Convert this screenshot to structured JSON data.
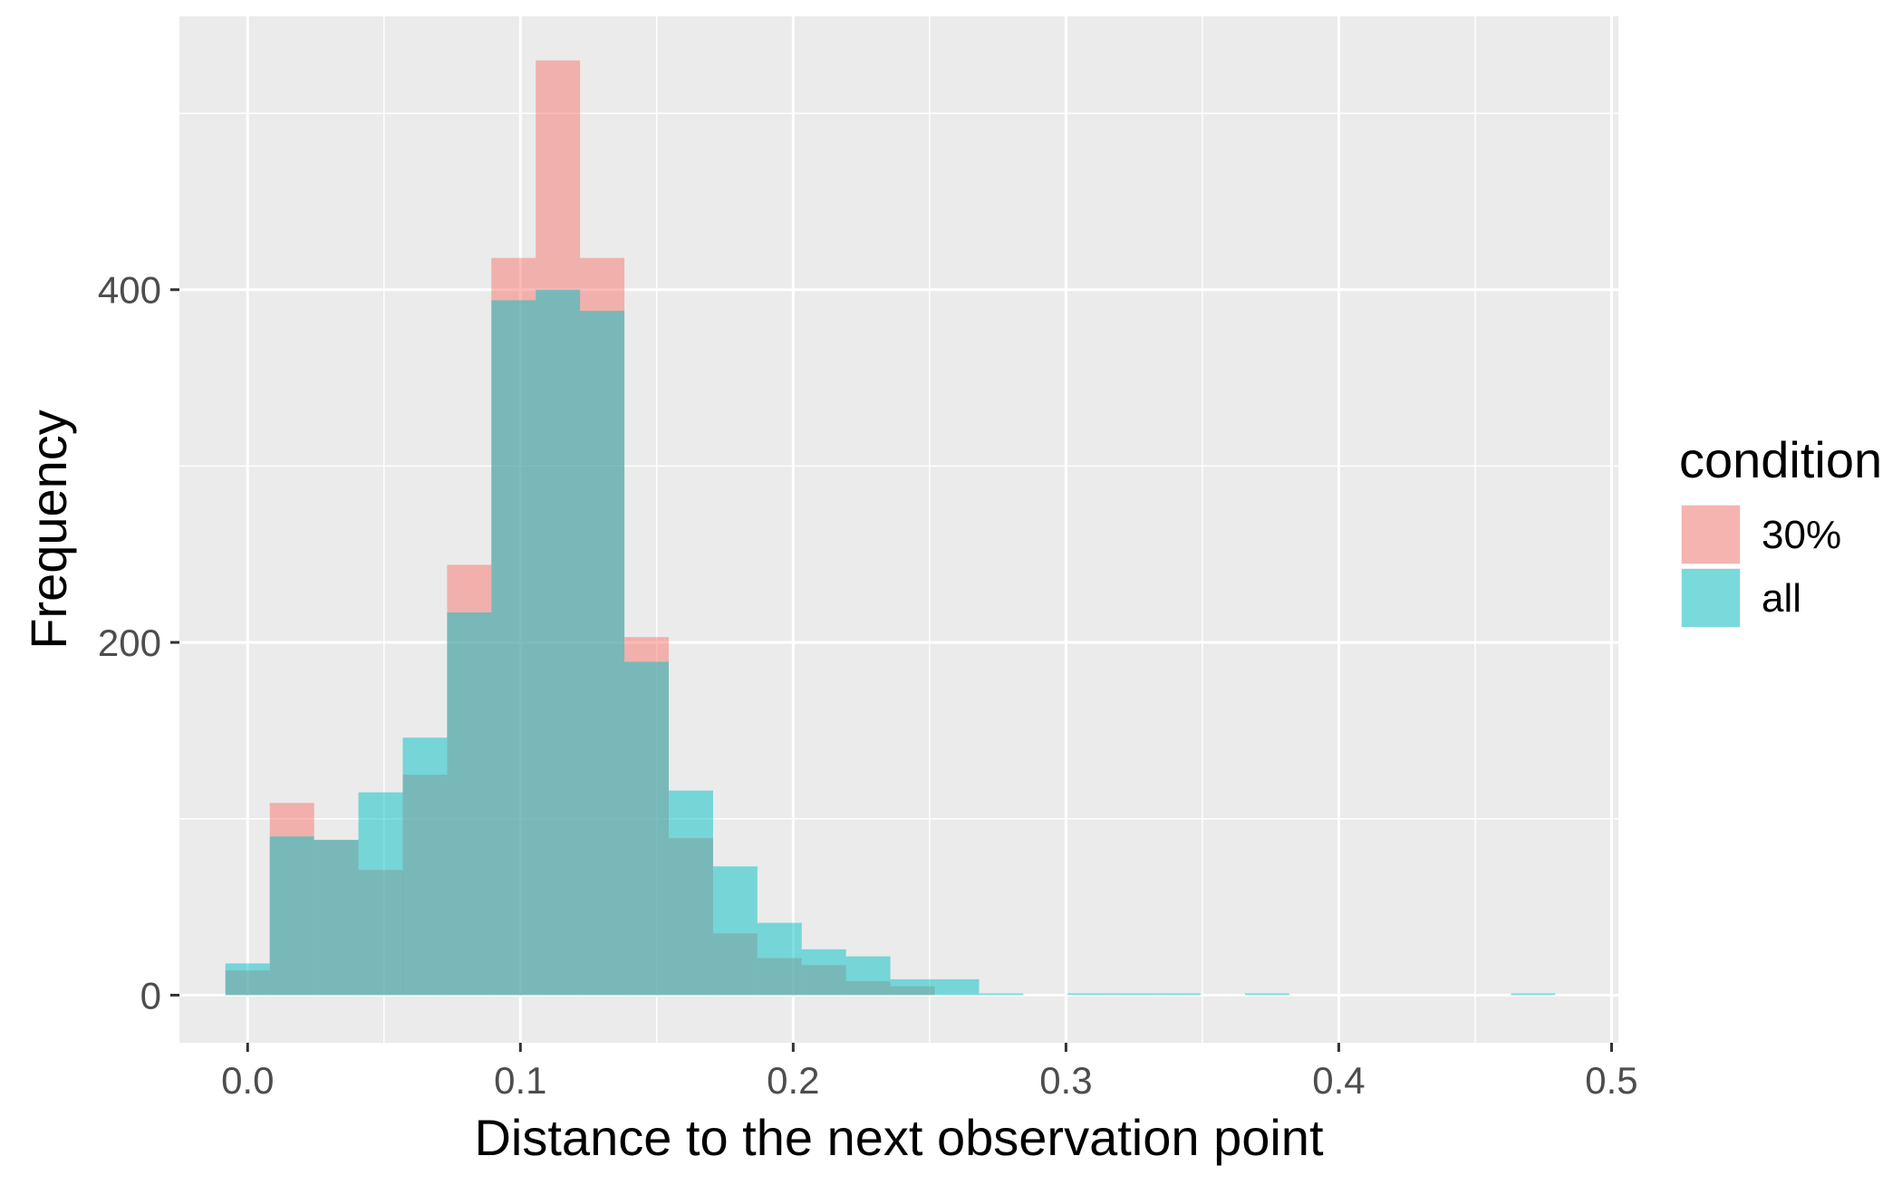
{
  "chart_data": {
    "type": "bar",
    "subtype": "overlaid-histogram",
    "title": "",
    "xlabel": "Distance to the next observation point",
    "ylabel": "Frequency",
    "xlim": [
      -0.025,
      0.5025
    ],
    "ylim": [
      -27,
      555
    ],
    "x_ticks": [
      0.0,
      0.1,
      0.2,
      0.3,
      0.4,
      0.5
    ],
    "x_tick_labels": [
      "0.0",
      "0.1",
      "0.2",
      "0.3",
      "0.4",
      "0.5"
    ],
    "y_ticks": [
      0,
      200,
      400
    ],
    "y_tick_labels": [
      "0",
      "200",
      "400"
    ],
    "grid": true,
    "legend_position": "right",
    "legend_title": "condition",
    "bin_width": 0.01625,
    "bin_centers": [
      0.0,
      0.01625,
      0.0325,
      0.04875,
      0.065,
      0.08125,
      0.0975,
      0.11375,
      0.13,
      0.14625,
      0.1625,
      0.17875,
      0.195,
      0.21125,
      0.2275,
      0.24375,
      0.26,
      0.27625,
      0.2925,
      0.30875,
      0.325,
      0.34125,
      0.3575,
      0.37375,
      0.39,
      0.40625,
      0.4225,
      0.43875,
      0.455,
      0.47125
    ],
    "series": [
      {
        "name": "30%",
        "color": "#F8766D",
        "values": [
          14,
          109,
          88,
          71,
          125,
          244,
          418,
          530,
          418,
          203,
          89,
          35,
          21,
          17,
          8,
          5,
          0,
          0,
          0,
          0,
          0,
          0,
          0,
          0,
          0,
          0,
          0,
          0,
          0,
          0
        ]
      },
      {
        "name": "all",
        "color": "#00BFC4",
        "values": [
          18,
          90,
          88,
          115,
          146,
          217,
          394,
          400,
          388,
          189,
          116,
          73,
          41,
          26,
          22,
          9,
          9,
          1,
          0,
          1,
          1,
          1,
          0,
          1,
          0,
          0,
          0,
          0,
          0,
          1
        ]
      }
    ]
  }
}
